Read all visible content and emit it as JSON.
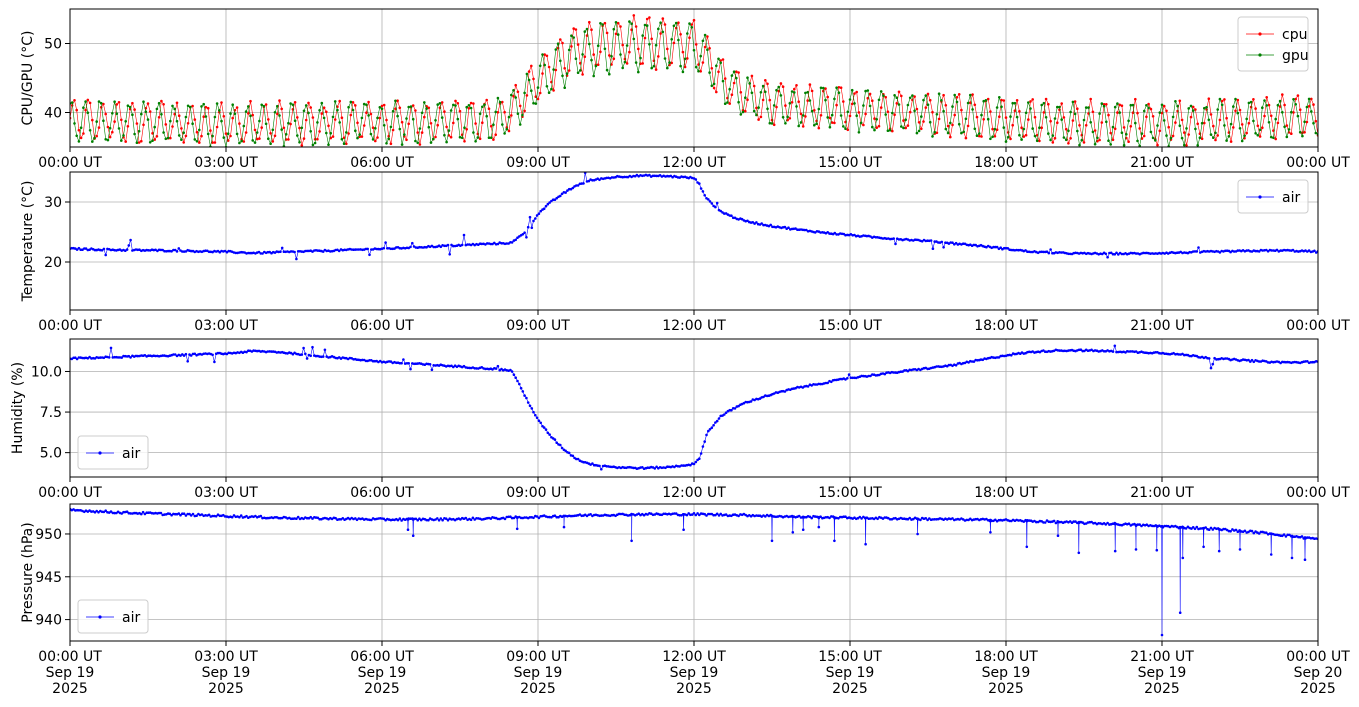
{
  "chart_data": [
    {
      "type": "line",
      "ylabel": "CPU/GPU (°C)",
      "ylim": [
        35,
        55
      ],
      "yticks": [
        40,
        50
      ],
      "xlim": [
        "2025-09-19T00:00:00Z",
        "2025-09-20T00:00:00Z"
      ],
      "xtick_labels": [
        [
          "00:00 UT"
        ],
        [
          "03:00 UT"
        ],
        [
          "06:00 UT"
        ],
        [
          "09:00 UT"
        ],
        [
          "12:00 UT"
        ],
        [
          "15:00 UT"
        ],
        [
          "18:00 UT"
        ],
        [
          "21:00 UT"
        ],
        [
          "00:00 UT"
        ]
      ],
      "grid": true,
      "legend_position": "top-right",
      "series": [
        {
          "name": "cpu",
          "color": "#ff0000",
          "x_hours": [
            0,
            0.5,
            1,
            1.5,
            2,
            2.5,
            3,
            3.5,
            4,
            4.5,
            5,
            5.5,
            6,
            6.5,
            7,
            7.5,
            8,
            8.25,
            8.5,
            8.75,
            9,
            9.25,
            9.5,
            9.75,
            10,
            10.5,
            11,
            11.5,
            12,
            12.25,
            12.5,
            12.75,
            13,
            13.5,
            14,
            14.5,
            15,
            15.5,
            16,
            16.5,
            17,
            17.5,
            18,
            18.5,
            19,
            19.5,
            20,
            20.5,
            21,
            21.5,
            22,
            22.5,
            23,
            23.5,
            24
          ],
          "center": [
            39.0,
            38.8,
            38.7,
            38.6,
            38.5,
            38.5,
            38.3,
            38.3,
            38.4,
            38.5,
            38.5,
            38.6,
            38.7,
            38.7,
            38.8,
            38.9,
            39.0,
            39.2,
            40.5,
            42.5,
            44.5,
            46.5,
            48.0,
            49.0,
            49.5,
            50.0,
            50.2,
            50.2,
            50.0,
            48.0,
            45.0,
            43.5,
            42.5,
            41.5,
            41.0,
            40.8,
            40.6,
            40.4,
            40.2,
            40.0,
            39.7,
            39.4,
            39.0,
            38.8,
            38.6,
            38.6,
            38.6,
            38.6,
            38.6,
            38.6,
            38.8,
            39.0,
            39.2,
            39.4,
            39.5
          ],
          "amplitude": [
            2.8,
            2.8,
            2.8,
            2.8,
            2.8,
            2.8,
            2.8,
            2.8,
            2.8,
            2.8,
            2.8,
            2.8,
            2.8,
            2.8,
            2.8,
            2.8,
            2.8,
            2.8,
            2.8,
            2.8,
            3.0,
            3.2,
            3.5,
            3.5,
            3.5,
            3.5,
            3.5,
            3.5,
            3.5,
            3.0,
            2.8,
            2.8,
            2.8,
            2.8,
            2.8,
            2.8,
            2.8,
            2.8,
            2.8,
            2.8,
            2.8,
            2.8,
            2.8,
            2.8,
            2.8,
            2.8,
            2.8,
            2.8,
            2.8,
            2.8,
            2.8,
            2.8,
            2.8,
            2.8,
            2.8
          ]
        },
        {
          "name": "gpu",
          "color": "#008000",
          "x_hours": [
            0,
            0.5,
            1,
            1.5,
            2,
            2.5,
            3,
            3.5,
            4,
            4.5,
            5,
            5.5,
            6,
            6.5,
            7,
            7.5,
            8,
            8.25,
            8.5,
            8.75,
            9,
            9.25,
            9.5,
            9.75,
            10,
            10.5,
            11,
            11.5,
            12,
            12.25,
            12.5,
            12.75,
            13,
            13.5,
            14,
            14.5,
            15,
            15.5,
            16,
            16.5,
            17,
            17.5,
            18,
            18.5,
            19,
            19.5,
            20,
            20.5,
            21,
            21.5,
            22,
            22.5,
            23,
            23.5,
            24
          ],
          "center": [
            38.8,
            38.6,
            38.5,
            38.4,
            38.3,
            38.3,
            38.2,
            38.2,
            38.3,
            38.4,
            38.4,
            38.5,
            38.6,
            38.6,
            38.7,
            38.8,
            38.9,
            39.1,
            40.3,
            42.2,
            44.2,
            46.2,
            47.6,
            48.6,
            49.1,
            49.6,
            49.8,
            49.8,
            49.6,
            47.7,
            44.8,
            43.3,
            42.3,
            41.3,
            40.8,
            40.6,
            40.4,
            40.2,
            40.0,
            39.8,
            39.5,
            39.2,
            38.8,
            38.6,
            38.4,
            38.4,
            38.4,
            38.4,
            38.4,
            38.4,
            38.6,
            38.8,
            39.0,
            39.2,
            39.3
          ],
          "amplitude": [
            2.8,
            2.8,
            2.8,
            2.8,
            2.8,
            2.8,
            2.8,
            2.8,
            2.8,
            2.8,
            2.8,
            2.8,
            2.8,
            2.8,
            2.8,
            2.8,
            2.8,
            2.8,
            2.8,
            2.8,
            3.0,
            3.2,
            3.5,
            3.5,
            3.5,
            3.5,
            3.5,
            3.5,
            3.5,
            3.0,
            2.8,
            2.8,
            2.8,
            2.8,
            2.8,
            2.8,
            2.8,
            2.8,
            2.8,
            2.8,
            2.8,
            2.8,
            2.8,
            2.8,
            2.8,
            2.8,
            2.8,
            2.8,
            2.8,
            2.8,
            2.8,
            2.8,
            2.8,
            2.8,
            2.8
          ]
        }
      ]
    },
    {
      "type": "line",
      "ylabel": "Temperature (°C)",
      "ylim": [
        12,
        35
      ],
      "yticks": [
        20,
        30
      ],
      "xlim": [
        "2025-09-19T00:00:00Z",
        "2025-09-20T00:00:00Z"
      ],
      "xtick_labels": [
        [
          "00:00 UT"
        ],
        [
          "03:00 UT"
        ],
        [
          "06:00 UT"
        ],
        [
          "09:00 UT"
        ],
        [
          "12:00 UT"
        ],
        [
          "15:00 UT"
        ],
        [
          "18:00 UT"
        ],
        [
          "21:00 UT"
        ],
        [
          "00:00 UT"
        ]
      ],
      "grid": true,
      "legend_position": "top-right",
      "series": [
        {
          "name": "air",
          "color": "#0000ff",
          "x_hours": [
            0,
            1,
            2,
            3,
            3.5,
            4,
            5,
            6,
            7,
            8,
            8.5,
            8.75,
            9,
            9.25,
            9.5,
            9.75,
            10,
            10.5,
            11,
            11.5,
            12,
            12.1,
            12.25,
            12.5,
            12.75,
            13,
            13.5,
            14,
            14.5,
            15,
            15.5,
            16,
            16.5,
            17,
            17.5,
            18,
            18.5,
            19,
            19.5,
            20,
            20.5,
            21,
            21.5,
            22,
            22.5,
            23,
            23.5,
            24
          ],
          "values": [
            22.2,
            22.0,
            21.9,
            21.7,
            21.5,
            21.6,
            21.9,
            22.2,
            22.6,
            23.0,
            23.2,
            25.0,
            28.0,
            30.0,
            31.5,
            32.8,
            33.6,
            34.2,
            34.4,
            34.3,
            34.0,
            33.0,
            30.5,
            28.5,
            27.5,
            26.8,
            26.0,
            25.4,
            24.9,
            24.5,
            24.1,
            23.8,
            23.5,
            23.1,
            22.7,
            22.2,
            21.7,
            21.5,
            21.4,
            21.4,
            21.4,
            21.5,
            21.6,
            21.7,
            21.8,
            21.9,
            21.9,
            21.7
          ]
        }
      ]
    },
    {
      "type": "line",
      "ylabel": "Humidity (%)",
      "ylim": [
        3.5,
        12.0
      ],
      "yticks": [
        5.0,
        7.5,
        10.0
      ],
      "ytick_labels": [
        "5.0",
        "7.5",
        "10.0"
      ],
      "xlim": [
        "2025-09-19T00:00:00Z",
        "2025-09-20T00:00:00Z"
      ],
      "xtick_labels": [
        [
          "00:00 UT"
        ],
        [
          "03:00 UT"
        ],
        [
          "06:00 UT"
        ],
        [
          "09:00 UT"
        ],
        [
          "12:00 UT"
        ],
        [
          "15:00 UT"
        ],
        [
          "18:00 UT"
        ],
        [
          "21:00 UT"
        ],
        [
          "00:00 UT"
        ]
      ],
      "grid": true,
      "legend_position": "bottom-left",
      "series": [
        {
          "name": "air",
          "color": "#0000ff",
          "x_hours": [
            0,
            1,
            2,
            3,
            3.5,
            4,
            5,
            6,
            7,
            8,
            8.5,
            8.75,
            9,
            9.25,
            9.5,
            9.75,
            10,
            10.5,
            11,
            11.5,
            12,
            12.1,
            12.25,
            12.5,
            12.75,
            13,
            13.5,
            14,
            14.5,
            15,
            15.5,
            16,
            16.5,
            17,
            17.5,
            18,
            18.5,
            19,
            19.5,
            20,
            20.5,
            21,
            21.5,
            22,
            22.5,
            23,
            23.5,
            24
          ],
          "values": [
            10.8,
            10.9,
            11.0,
            11.1,
            11.25,
            11.2,
            10.9,
            10.6,
            10.4,
            10.2,
            10.05,
            8.5,
            7.0,
            6.0,
            5.2,
            4.6,
            4.3,
            4.1,
            4.05,
            4.1,
            4.3,
            4.6,
            6.2,
            7.2,
            7.7,
            8.1,
            8.6,
            9.0,
            9.3,
            9.6,
            9.8,
            10.0,
            10.2,
            10.4,
            10.7,
            11.0,
            11.2,
            11.3,
            11.3,
            11.25,
            11.2,
            11.15,
            11.0,
            10.8,
            10.7,
            10.6,
            10.55,
            10.6
          ]
        }
      ]
    },
    {
      "type": "line",
      "ylabel": "Pressure (hPa)",
      "ylim": [
        937.5,
        953.5
      ],
      "yticks": [
        940,
        945,
        950
      ],
      "xlim": [
        "2025-09-19T00:00:00Z",
        "2025-09-20T00:00:00Z"
      ],
      "xtick_labels": [
        [
          "00:00 UT",
          "Sep 19",
          "2025"
        ],
        [
          "03:00 UT",
          "Sep 19",
          "2025"
        ],
        [
          "06:00 UT",
          "Sep 19",
          "2025"
        ],
        [
          "09:00 UT",
          "Sep 19",
          "2025"
        ],
        [
          "12:00 UT",
          "Sep 19",
          "2025"
        ],
        [
          "15:00 UT",
          "Sep 19",
          "2025"
        ],
        [
          "18:00 UT",
          "Sep 19",
          "2025"
        ],
        [
          "21:00 UT",
          "Sep 19",
          "2025"
        ],
        [
          "00:00 UT",
          "Sep 20",
          "2025"
        ]
      ],
      "grid": true,
      "legend_position": "bottom-left",
      "series": [
        {
          "name": "air",
          "color": "#0000ff",
          "x_hours": [
            0,
            1,
            2,
            3,
            4,
            5,
            6,
            7,
            8,
            9,
            10,
            11,
            12,
            13,
            14,
            15,
            16,
            17,
            18,
            19,
            20,
            21,
            22,
            23,
            24
          ],
          "values": [
            952.8,
            952.5,
            952.3,
            952.1,
            951.9,
            951.8,
            951.7,
            951.7,
            951.8,
            952.0,
            952.2,
            952.3,
            952.3,
            952.2,
            952.0,
            951.9,
            951.8,
            951.7,
            951.6,
            951.4,
            951.2,
            950.9,
            950.6,
            950.1,
            949.4
          ],
          "dips": [
            [
              6.5,
              950.5
            ],
            [
              6.6,
              949.8
            ],
            [
              8.6,
              950.6
            ],
            [
              9.5,
              950.8
            ],
            [
              10.8,
              949.2
            ],
            [
              11.8,
              950.5
            ],
            [
              13.5,
              949.2
            ],
            [
              13.9,
              950.2
            ],
            [
              14.1,
              950.5
            ],
            [
              14.4,
              950.8
            ],
            [
              14.7,
              949.2
            ],
            [
              15.3,
              948.8
            ],
            [
              16.3,
              950.0
            ],
            [
              17.7,
              950.2
            ],
            [
              18.4,
              948.5
            ],
            [
              19.0,
              949.8
            ],
            [
              19.4,
              947.8
            ],
            [
              20.1,
              948.0
            ],
            [
              20.5,
              948.2
            ],
            [
              20.9,
              948.1
            ],
            [
              21.0,
              938.2
            ],
            [
              21.35,
              940.8
            ],
            [
              21.4,
              947.2
            ],
            [
              21.8,
              948.5
            ],
            [
              22.1,
              948.0
            ],
            [
              22.5,
              948.2
            ],
            [
              23.1,
              947.6
            ],
            [
              23.5,
              947.2
            ],
            [
              23.75,
              947.0
            ]
          ]
        }
      ]
    }
  ]
}
